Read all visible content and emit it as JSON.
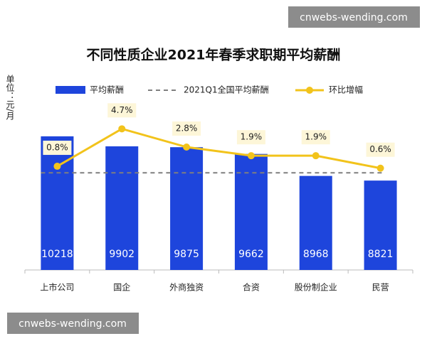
{
  "chart_data": {
    "type": "bar",
    "title": "不同性质企业2021年春季求职期平均薪酬",
    "y_label": "单位：元/月",
    "categories": [
      "上市公司",
      "国企",
      "外商独资",
      "合资",
      "股份制企业",
      "民营"
    ],
    "series": [
      {
        "name": "平均薪酬",
        "type": "bar",
        "color": "#1e45dc",
        "values": [
          10218,
          9902,
          9875,
          9662,
          8968,
          8821
        ]
      },
      {
        "name": "环比增幅",
        "type": "line",
        "axis": "y2",
        "color": "#f2c31b",
        "values": [
          0.8,
          4.7,
          2.8,
          1.9,
          1.9,
          0.6
        ],
        "value_labels": [
          "0.8%",
          "4.7%",
          "2.8%",
          "1.9%",
          "1.9%",
          "0.6%"
        ]
      }
    ],
    "reference_line": {
      "name": "2021Q1全国平均薪酬",
      "value": 9065,
      "color": "#7f7f7f"
    },
    "ylim": [
      6000,
      11000
    ],
    "y2lim": [
      -10,
      6.5
    ],
    "watermarks": [
      "cnwebs-wending.com",
      "cnwebs-wending.com"
    ]
  }
}
